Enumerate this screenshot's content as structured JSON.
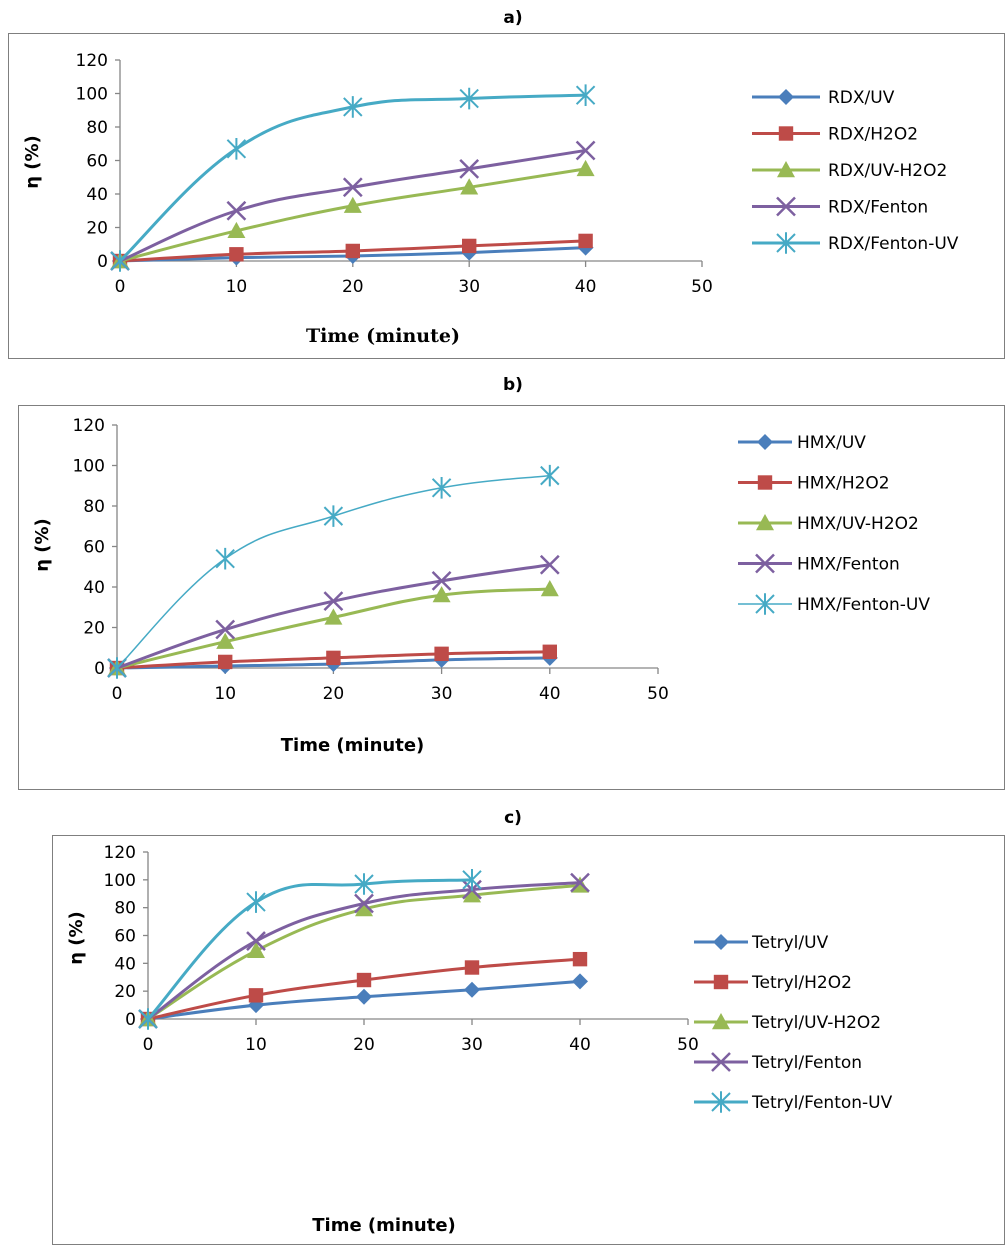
{
  "chart_data": [
    {
      "type": "line",
      "panel_label": "a)",
      "xlabel": "Time (minute)",
      "ylabel": "η (%)",
      "xlim": [
        0,
        50
      ],
      "ylim": [
        0,
        120
      ],
      "x_ticks": [
        "0",
        "10",
        "20",
        "30",
        "40",
        "50"
      ],
      "y_ticks": [
        "0",
        "20",
        "40",
        "60",
        "80",
        "100",
        "120"
      ],
      "grid": false,
      "legend_position": "right",
      "x": [
        0,
        10,
        20,
        30,
        40
      ],
      "series": [
        {
          "name": "RDX/UV",
          "values": [
            0,
            2,
            3,
            5,
            8
          ],
          "color": "#4a7ebb",
          "marker": "diamond",
          "width": 3
        },
        {
          "name": "RDX/H2O2",
          "values": [
            0,
            4,
            6,
            9,
            12
          ],
          "color": "#be4b48",
          "marker": "square",
          "width": 3
        },
        {
          "name": "RDX/UV-H2O2",
          "values": [
            0,
            18,
            33,
            44,
            55
          ],
          "color": "#98b954",
          "marker": "triangle",
          "width": 3
        },
        {
          "name": "RDX/Fenton",
          "values": [
            0,
            30,
            44,
            55,
            66
          ],
          "color": "#7d60a0",
          "marker": "x",
          "width": 3
        },
        {
          "name": "RDX/Fenton-UV",
          "values": [
            0,
            67,
            92,
            97,
            99
          ],
          "color": "#46aac5",
          "marker": "star",
          "width": 3
        }
      ]
    },
    {
      "type": "line",
      "panel_label": "b)",
      "xlabel": "Time (minute)",
      "ylabel": "η (%)",
      "xlim": [
        0,
        50
      ],
      "ylim": [
        0,
        120
      ],
      "x_ticks": [
        "0",
        "10",
        "20",
        "30",
        "40",
        "50"
      ],
      "y_ticks": [
        "0",
        "20",
        "40",
        "60",
        "80",
        "100",
        "120"
      ],
      "grid": false,
      "legend_position": "right",
      "x": [
        0,
        10,
        20,
        30,
        40
      ],
      "series": [
        {
          "name": "HMX/UV",
          "values": [
            0,
            1,
            2,
            4,
            5
          ],
          "color": "#4a7ebb",
          "marker": "diamond",
          "width": 3
        },
        {
          "name": "HMX/H2O2",
          "values": [
            0,
            3,
            5,
            7,
            8
          ],
          "color": "#be4b48",
          "marker": "square",
          "width": 3
        },
        {
          "name": "HMX/UV-H2O2",
          "values": [
            0,
            13,
            25,
            36,
            39
          ],
          "color": "#98b954",
          "marker": "triangle",
          "width": 3
        },
        {
          "name": "HMX/Fenton",
          "values": [
            0,
            19,
            33,
            43,
            51
          ],
          "color": "#7d60a0",
          "marker": "x",
          "width": 3
        },
        {
          "name": "HMX/Fenton-UV",
          "values": [
            0,
            54,
            75,
            89,
            95
          ],
          "color": "#46aac5",
          "marker": "star",
          "width": 1.5
        }
      ]
    },
    {
      "type": "line",
      "panel_label": "c)",
      "xlabel": "Time (minute)",
      "ylabel": "η (%)",
      "xlim": [
        0,
        50
      ],
      "ylim": [
        0,
        120
      ],
      "x_ticks": [
        "0",
        "10",
        "20",
        "30",
        "40",
        "50"
      ],
      "y_ticks": [
        "0",
        "20",
        "40",
        "60",
        "80",
        "100",
        "120"
      ],
      "grid": false,
      "legend_position": "right",
      "series": [
        {
          "name": "Tetryl/UV",
          "x": [
            0,
            10,
            20,
            30,
            40
          ],
          "values": [
            0,
            10,
            16,
            21,
            27
          ],
          "color": "#4a7ebb",
          "marker": "diamond",
          "width": 3
        },
        {
          "name": "Tetryl/H2O2",
          "x": [
            0,
            10,
            20,
            30,
            40
          ],
          "values": [
            0,
            17,
            28,
            37,
            43
          ],
          "color": "#be4b48",
          "marker": "square",
          "width": 3
        },
        {
          "name": "Tetryl/UV-H2O2",
          "x": [
            0,
            10,
            20,
            30,
            40
          ],
          "values": [
            0,
            49,
            79,
            89,
            96
          ],
          "color": "#98b954",
          "marker": "triangle",
          "width": 3
        },
        {
          "name": "Tetryl/Fenton",
          "x": [
            0,
            10,
            20,
            30,
            40
          ],
          "values": [
            0,
            56,
            83,
            93,
            98
          ],
          "color": "#7d60a0",
          "marker": "x",
          "width": 3
        },
        {
          "name": "Tetryl/Fenton-UV",
          "x": [
            0,
            10,
            20,
            30
          ],
          "values": [
            0,
            84,
            97,
            100
          ],
          "color": "#46aac5",
          "marker": "star",
          "width": 3
        }
      ]
    }
  ]
}
